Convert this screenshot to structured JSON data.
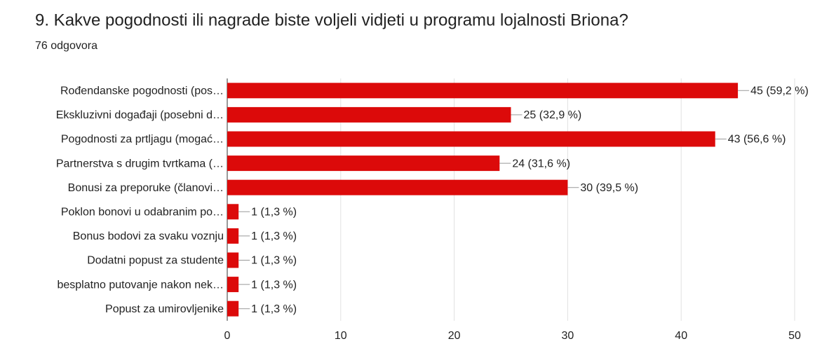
{
  "chart_data": {
    "type": "bar",
    "orientation": "horizontal",
    "title": "9. Kakve pogodnosti ili nagrade biste voljeli vidjeti u programu lojalnosti Briona?",
    "subtitle": "76 odgovora",
    "categories": [
      "Rođendanske pogodnosti (pos…",
      "Ekskluzivni događaji (posebni d…",
      "Pogodnosti za prtljagu (mogać…",
      "Partnerstva s drugim tvrtkama (…",
      "Bonusi za preporuke (članovi…",
      "Poklon bonovi u odabranim po…",
      "Bonus bodovi za svaku voznju",
      "Dodatni popust za studente",
      "besplatno putovanje nakon nek…",
      "Popust za umirovljenike"
    ],
    "values": [
      45,
      25,
      43,
      24,
      30,
      1,
      1,
      1,
      1,
      1
    ],
    "value_labels": [
      "45 (59,2 %)",
      "25 (32,9 %)",
      "43 (56,6 %)",
      "24 (31,6 %)",
      "30 (39,5 %)",
      "1 (1,3 %)",
      "1 (1,3 %)",
      "1 (1,3 %)",
      "1 (1,3 %)",
      "1 (1,3 %)"
    ],
    "color": "#dc0a0a",
    "xlim": [
      0,
      50
    ],
    "xticks": [
      0,
      10,
      20,
      30,
      40,
      50
    ],
    "grid": true
  }
}
